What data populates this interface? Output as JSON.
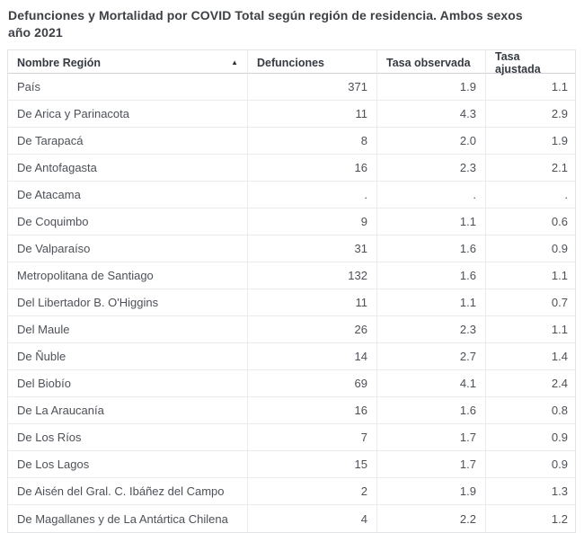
{
  "title": {
    "line1": "Defunciones y Mortalidad por COVID Total según región de residencia. Ambos sexos",
    "line2": "año 2021"
  },
  "table": {
    "sort_icon": "▲",
    "sorted_column": "Nombre Región",
    "sort_direction": "ascending",
    "columns": [
      {
        "label": "Nombre Región",
        "align": "left"
      },
      {
        "label": "Defunciones",
        "align": "left"
      },
      {
        "label": "Tasa observada",
        "align": "left"
      },
      {
        "label": "Tasa ajustada",
        "align": "left"
      }
    ],
    "rows": [
      {
        "region": "País",
        "defunciones": "371",
        "tasa_observada": "1.9",
        "tasa_ajustada": "1.1"
      },
      {
        "region": "De Arica y Parinacota",
        "defunciones": "11",
        "tasa_observada": "4.3",
        "tasa_ajustada": "2.9"
      },
      {
        "region": "De Tarapacá",
        "defunciones": "8",
        "tasa_observada": "2.0",
        "tasa_ajustada": "1.9"
      },
      {
        "region": "De Antofagasta",
        "defunciones": "16",
        "tasa_observada": "2.3",
        "tasa_ajustada": "2.1"
      },
      {
        "region": "De Atacama",
        "defunciones": ".",
        "tasa_observada": ".",
        "tasa_ajustada": "."
      },
      {
        "region": "De Coquimbo",
        "defunciones": "9",
        "tasa_observada": "1.1",
        "tasa_ajustada": "0.6"
      },
      {
        "region": "De Valparaíso",
        "defunciones": "31",
        "tasa_observada": "1.6",
        "tasa_ajustada": "0.9"
      },
      {
        "region": "Metropolitana de Santiago",
        "defunciones": "132",
        "tasa_observada": "1.6",
        "tasa_ajustada": "1.1"
      },
      {
        "region": "Del Libertador B. O'Higgins",
        "defunciones": "11",
        "tasa_observada": "1.1",
        "tasa_ajustada": "0.7"
      },
      {
        "region": "Del Maule",
        "defunciones": "26",
        "tasa_observada": "2.3",
        "tasa_ajustada": "1.1"
      },
      {
        "region": "De Ñuble",
        "defunciones": "14",
        "tasa_observada": "2.7",
        "tasa_ajustada": "1.4"
      },
      {
        "region": "Del Biobío",
        "defunciones": "69",
        "tasa_observada": "4.1",
        "tasa_ajustada": "2.4"
      },
      {
        "region": "De La Araucanía",
        "defunciones": "16",
        "tasa_observada": "1.6",
        "tasa_ajustada": "0.8"
      },
      {
        "region": "De Los Ríos",
        "defunciones": "7",
        "tasa_observada": "1.7",
        "tasa_ajustada": "0.9"
      },
      {
        "region": "De Los Lagos",
        "defunciones": "15",
        "tasa_observada": "1.7",
        "tasa_ajustada": "0.9"
      },
      {
        "region": "De Aisén del Gral. C. Ibáñez del Campo",
        "defunciones": "2",
        "tasa_observada": "1.9",
        "tasa_ajustada": "1.3"
      },
      {
        "region": "De Magallanes y de La Antártica Chilena",
        "defunciones": "4",
        "tasa_observada": "2.2",
        "tasa_ajustada": "1.2"
      }
    ]
  },
  "colors": {
    "title_text": "#3d4044",
    "header_text": "#363b42",
    "body_text": "#4d5157",
    "row_border": "#eaebec",
    "header_border": "#cfd1d4",
    "table_border": "#e3e4e6"
  }
}
